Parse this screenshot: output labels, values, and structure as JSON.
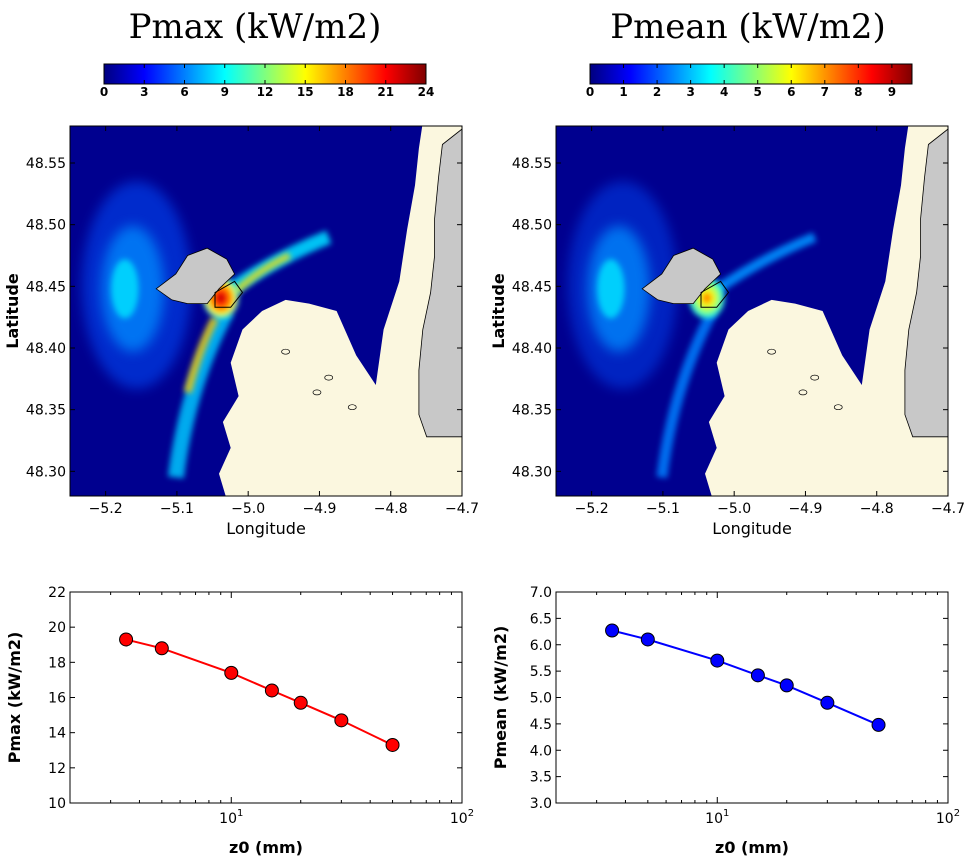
{
  "colors": {
    "sea": "#00008f",
    "land_shallow": "#fbf7df",
    "land_grey": "#c8c8c8",
    "red_series": "#ff0000",
    "blue_series": "#0000ff",
    "jet_stops": [
      "#00007f",
      "#0000ff",
      "#007fff",
      "#00ffff",
      "#7fff7f",
      "#ffff00",
      "#ff7f00",
      "#ff0000",
      "#7f0000"
    ]
  },
  "chart_data": [
    {
      "type": "heatmap",
      "title": "Pmax (kW/m2)",
      "colorbar": {
        "colormap": "jet",
        "range": [
          0,
          24
        ],
        "ticks": [
          "0",
          "3",
          "6",
          "9",
          "12",
          "15",
          "18",
          "21",
          "24"
        ]
      },
      "xlabel": "Longitude",
      "ylabel": "Latitude",
      "xlim": [
        -5.25,
        -4.7
      ],
      "ylim": [
        48.28,
        48.58
      ],
      "xticks": [
        -5.2,
        -5.1,
        -5.0,
        -4.9,
        -4.8,
        -4.7
      ],
      "xtick_labels": [
        "−5.2",
        "−5.1",
        "−5.0",
        "−4.9",
        "−4.8",
        "−4.7"
      ],
      "yticks": [
        48.3,
        48.35,
        48.4,
        48.45,
        48.5,
        48.55
      ],
      "ytick_labels": [
        "48.30",
        "48.35",
        "48.40",
        "48.45",
        "48.50",
        "48.55"
      ]
    },
    {
      "type": "heatmap",
      "title": "Pmean (kW/m2)",
      "colorbar": {
        "colormap": "jet",
        "range": [
          0,
          9.6
        ],
        "ticks": [
          "0",
          "1",
          "2",
          "3",
          "4",
          "5",
          "6",
          "7",
          "8",
          "9"
        ]
      },
      "xlabel": "Longitude",
      "ylabel": "Latitude",
      "xlim": [
        -5.25,
        -4.7
      ],
      "ylim": [
        48.28,
        48.58
      ],
      "xticks": [
        -5.2,
        -5.1,
        -5.0,
        -4.9,
        -4.8,
        -4.7
      ],
      "xtick_labels": [
        "−5.2",
        "−5.1",
        "−5.0",
        "−4.9",
        "−4.8",
        "−4.7"
      ],
      "yticks": [
        48.3,
        48.35,
        48.4,
        48.45,
        48.5,
        48.55
      ],
      "ytick_labels": [
        "48.30",
        "48.35",
        "48.40",
        "48.45",
        "48.50",
        "48.55"
      ]
    },
    {
      "type": "line",
      "xscale": "log",
      "xlabel": "z0 (mm)",
      "ylabel": "Pmax (kW/m2)",
      "xlim": [
        2,
        100
      ],
      "ylim": [
        10,
        22
      ],
      "x": [
        3.5,
        5,
        10,
        15,
        20,
        30,
        50
      ],
      "series": [
        {
          "values": [
            19.3,
            18.8,
            17.4,
            16.4,
            15.7,
            14.7,
            13.3
          ]
        }
      ],
      "xticks": [
        10,
        100
      ],
      "xtick_labels": [
        {
          "base": "10",
          "exp": "1"
        },
        {
          "base": "10",
          "exp": "2"
        }
      ],
      "yticks": [
        10,
        12,
        14,
        16,
        18,
        20,
        22
      ],
      "ytick_labels": [
        "10",
        "12",
        "14",
        "16",
        "18",
        "20",
        "22"
      ],
      "grid": false
    },
    {
      "type": "line",
      "xscale": "log",
      "xlabel": "z0 (mm)",
      "ylabel": "Pmean (kW/m2)",
      "xlim": [
        2,
        100
      ],
      "ylim": [
        3.0,
        7.0
      ],
      "x": [
        3.5,
        5,
        10,
        15,
        20,
        30,
        50
      ],
      "series": [
        {
          "values": [
            6.27,
            6.1,
            5.7,
            5.42,
            5.23,
            4.9,
            4.48
          ]
        }
      ],
      "xticks": [
        10,
        100
      ],
      "xtick_labels": [
        {
          "base": "10",
          "exp": "1"
        },
        {
          "base": "10",
          "exp": "2"
        }
      ],
      "yticks": [
        3.0,
        3.5,
        4.0,
        4.5,
        5.0,
        5.5,
        6.0,
        6.5,
        7.0
      ],
      "ytick_labels": [
        "3.0",
        "3.5",
        "4.0",
        "4.5",
        "5.0",
        "5.5",
        "6.0",
        "6.5",
        "7.0"
      ],
      "grid": false
    }
  ]
}
